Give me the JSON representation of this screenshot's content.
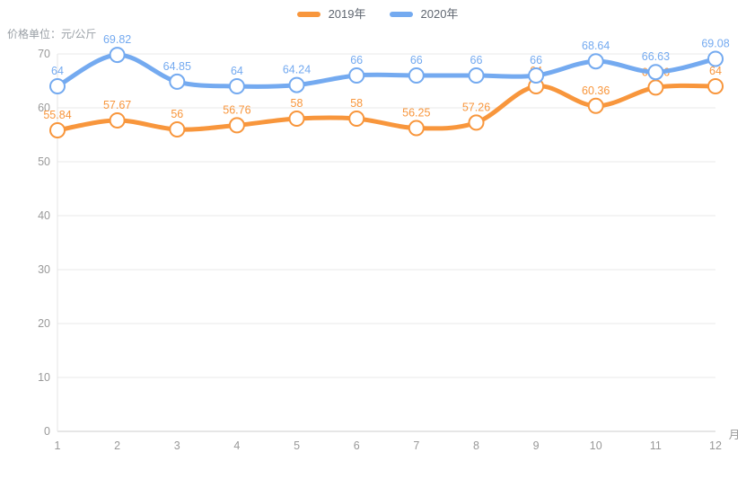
{
  "chart_data": {
    "type": "line",
    "categories": [
      "1",
      "2",
      "3",
      "4",
      "5",
      "6",
      "7",
      "8",
      "9",
      "10",
      "11",
      "12"
    ],
    "series": [
      {
        "name": "2019年",
        "color": "#f8963c",
        "values": [
          55.84,
          57.67,
          56,
          56.76,
          58,
          58,
          56.25,
          57.26,
          64,
          60.36,
          63.76,
          64
        ]
      },
      {
        "name": "2020年",
        "color": "#74aaf0",
        "values": [
          64,
          69.82,
          64.85,
          64,
          64.24,
          66,
          66,
          66,
          66,
          68.64,
          66.63,
          69.08
        ]
      }
    ],
    "title": "",
    "xlabel": "月",
    "ylabel": "价格单位：元/公斤",
    "ylim": [
      0,
      70
    ],
    "y_ticks": [
      0,
      10,
      20,
      30,
      40,
      50,
      60,
      70
    ],
    "grid": true,
    "smooth": true,
    "legend_position": "top",
    "grid_color": "#e9e9e9",
    "axis_line_color": "#cccccc",
    "y_axis_line_color": "#e6e6e6",
    "axis_text_color": "#999999"
  }
}
